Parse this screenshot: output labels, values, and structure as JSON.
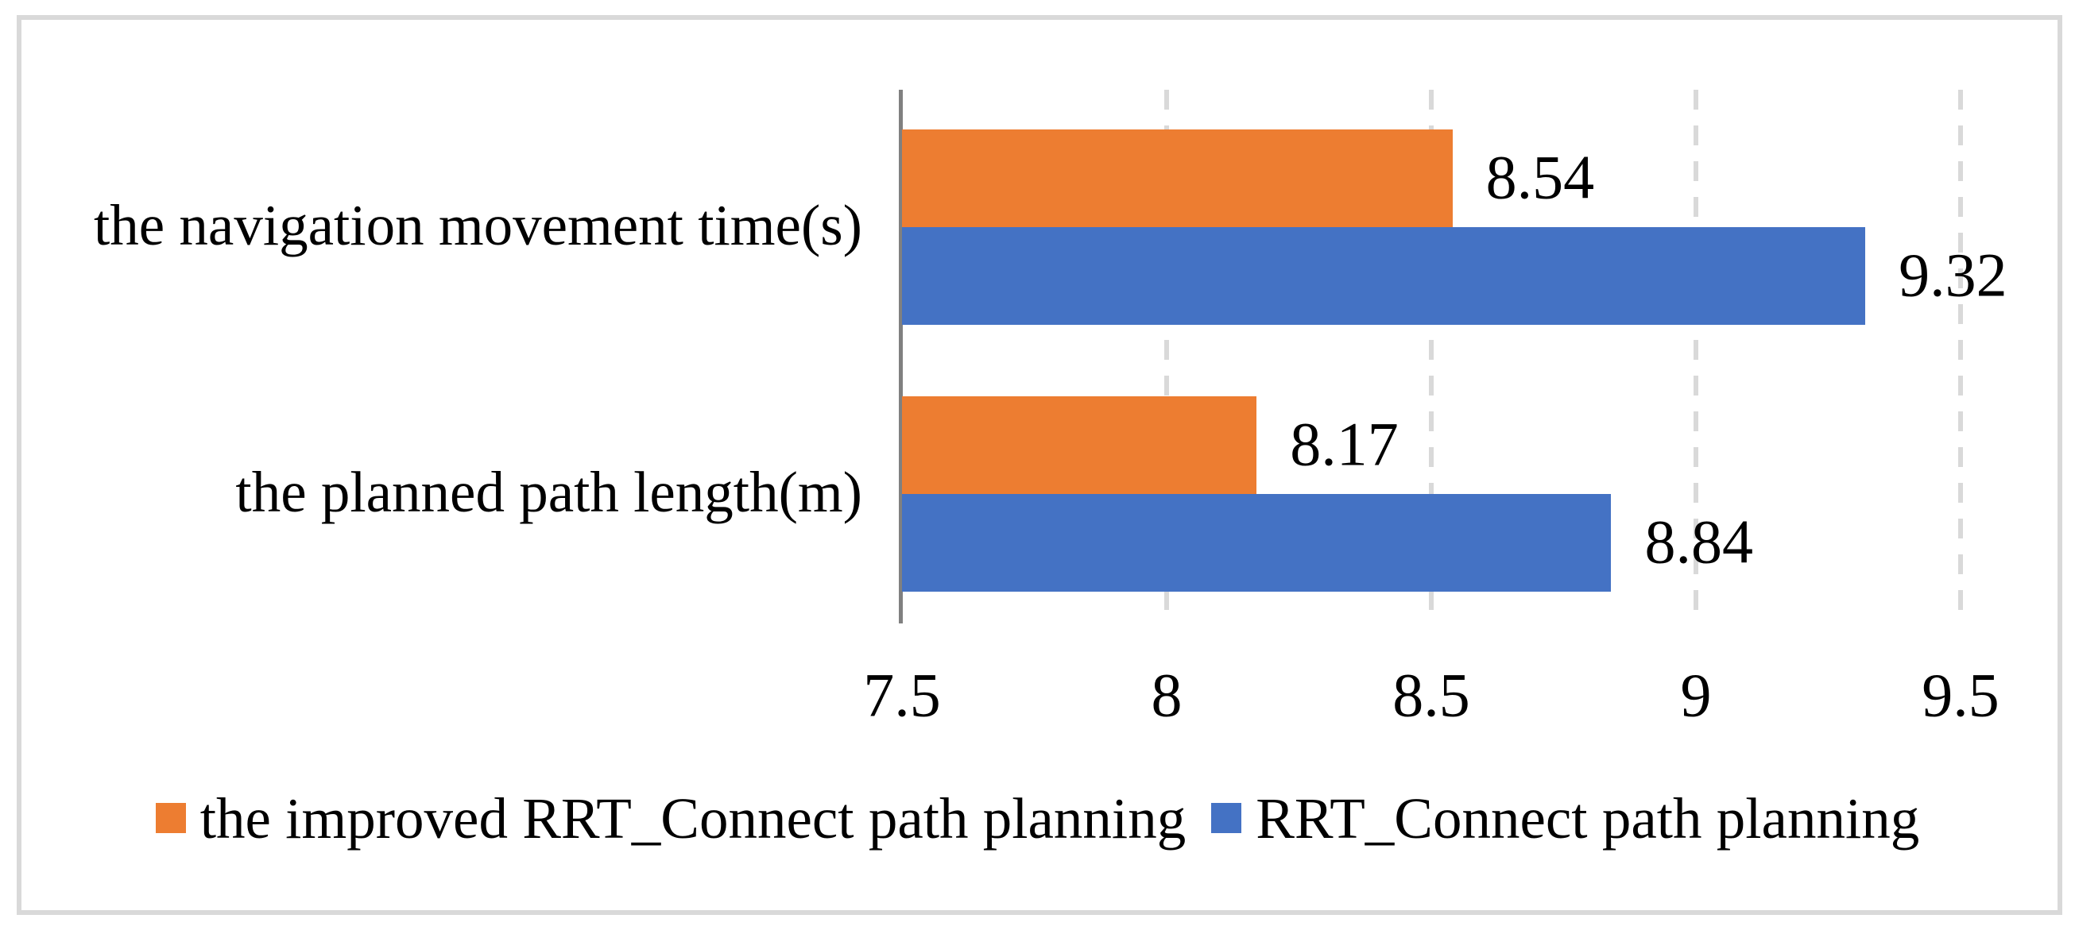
{
  "chart_data": {
    "type": "bar",
    "orientation": "horizontal",
    "title": "",
    "xlabel": "",
    "ylabel": "",
    "categories": [
      "the navigation movement time(s)",
      "the planned path length(m)"
    ],
    "series": [
      {
        "name": "the improved RRT_Connect path planning",
        "color": "#ED7D31",
        "values": [
          8.54,
          8.17
        ],
        "labels": [
          "8.54",
          "8.17"
        ]
      },
      {
        "name": "RRT_Connect path planning",
        "color": "#4472C4",
        "values": [
          9.32,
          8.84
        ],
        "labels": [
          "9.32",
          "8.84"
        ]
      }
    ],
    "xlim": [
      7.5,
      9.5
    ],
    "xticks": [
      {
        "value": 7.5,
        "label": "7.5"
      },
      {
        "value": 8.0,
        "label": "8"
      },
      {
        "value": 8.5,
        "label": "8.5"
      },
      {
        "value": 9.0,
        "label": "9"
      },
      {
        "value": 9.5,
        "label": "9.5"
      }
    ],
    "grid": "vertical-dashed",
    "data_labels": "outside-end",
    "legend_position": "bottom",
    "colors": {
      "axis_line": "#808080",
      "gridline": "#D9D9D9",
      "frame_border": "#D9D9D9",
      "text": "#000000",
      "background": "#FFFFFF"
    }
  }
}
